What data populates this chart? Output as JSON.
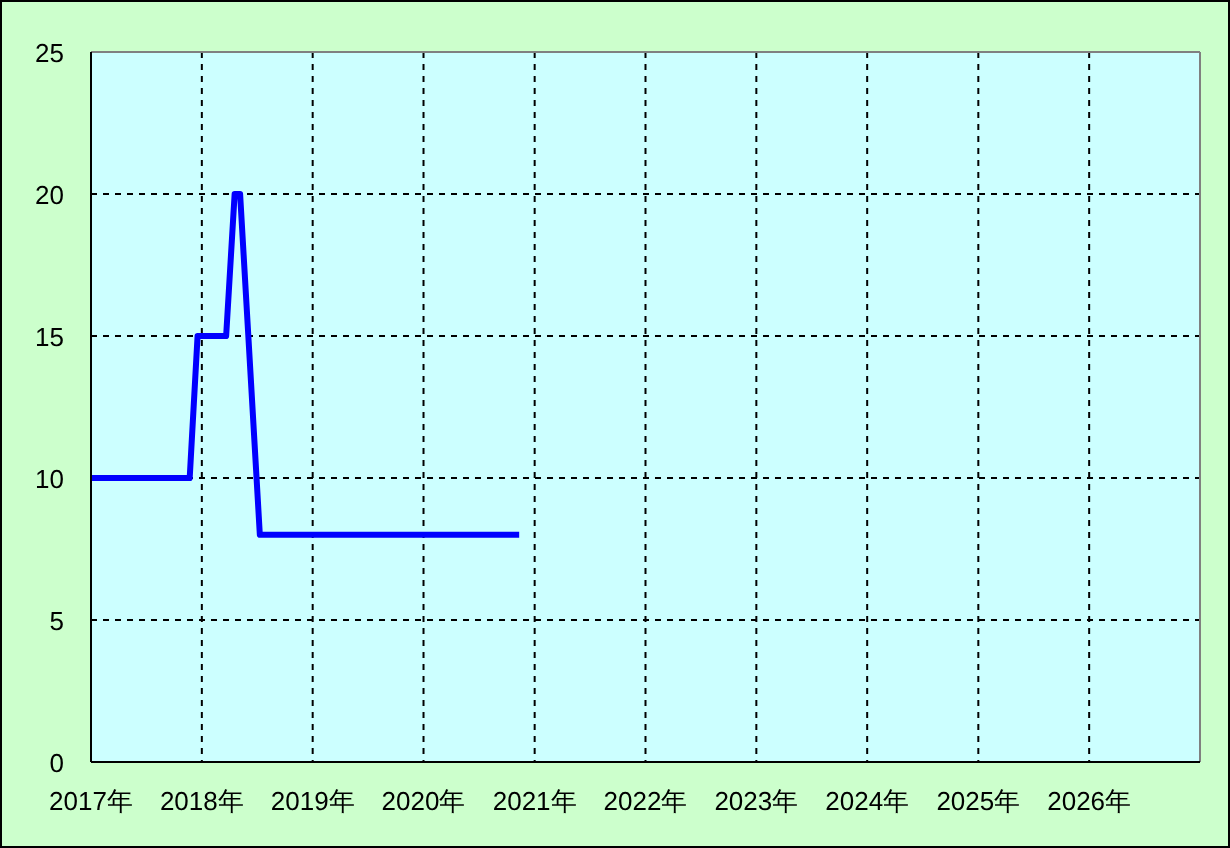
{
  "chart_data": {
    "type": "line",
    "x": [
      "2017-01-01",
      "2017-11-22",
      "2017-12-18",
      "2018-03-22",
      "2018-04-19",
      "2018-05-07",
      "2018-07-11",
      "2020-11-11"
    ],
    "values": [
      10,
      10,
      15,
      15,
      20,
      20,
      8,
      8
    ],
    "color": "#0000ff",
    "line_style": "solid",
    "marker": "none",
    "xlim": [
      "2017-01-01",
      "2027-01-01"
    ],
    "xticks": [
      {
        "value": "2017-01-01",
        "label": "2017年"
      },
      {
        "value": "2018-01-01",
        "label": "2018年"
      },
      {
        "value": "2019-01-01",
        "label": "2019年"
      },
      {
        "value": "2020-01-01",
        "label": "2020年"
      },
      {
        "value": "2021-01-01",
        "label": "2021年"
      },
      {
        "value": "2022-01-01",
        "label": "2022年"
      },
      {
        "value": "2023-01-01",
        "label": "2023年"
      },
      {
        "value": "2024-01-01",
        "label": "2024年"
      },
      {
        "value": "2025-01-01",
        "label": "2025年"
      },
      {
        "value": "2026-01-01",
        "label": "2026年"
      }
    ],
    "ylim": [
      0,
      25
    ],
    "yticks": [
      0,
      5,
      10,
      15,
      20,
      25
    ],
    "grid": true
  }
}
